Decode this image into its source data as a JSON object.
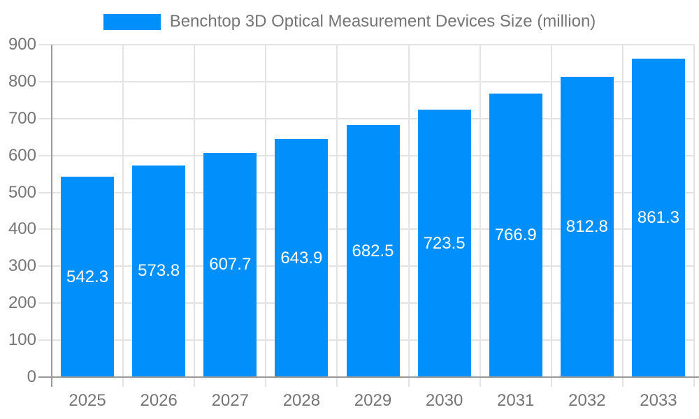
{
  "chart_data": {
    "type": "bar",
    "title": "Benchtop 3D Optical Measurement Devices Size (million)",
    "legend": [
      "Benchtop 3D Optical Measurement Devices Size (million)"
    ],
    "legend_position": "top-center",
    "categories": [
      "2025",
      "2026",
      "2027",
      "2028",
      "2029",
      "2030",
      "2031",
      "2032",
      "2033"
    ],
    "series": [
      {
        "name": "Benchtop 3D Optical Measurement Devices Size (million)",
        "values": [
          542.3,
          573.8,
          607.7,
          643.9,
          682.5,
          723.5,
          766.9,
          812.8,
          861.3
        ]
      }
    ],
    "xlabel": "",
    "ylabel": "",
    "ylim": [
      0,
      900
    ],
    "y_tick_interval": 100,
    "y_tick_labels": [
      "0",
      "100",
      "200",
      "300",
      "400",
      "500",
      "600",
      "700",
      "800",
      "900"
    ],
    "grid": true,
    "value_labels_shown": true
  },
  "colors": {
    "bar": "#008FFB",
    "value_label": "#ffffff",
    "tick_label": "#757575",
    "legend_text": "#757575",
    "axis_line": "#999999",
    "grid_line": "#e3e3e3",
    "background": "#ffffff"
  }
}
